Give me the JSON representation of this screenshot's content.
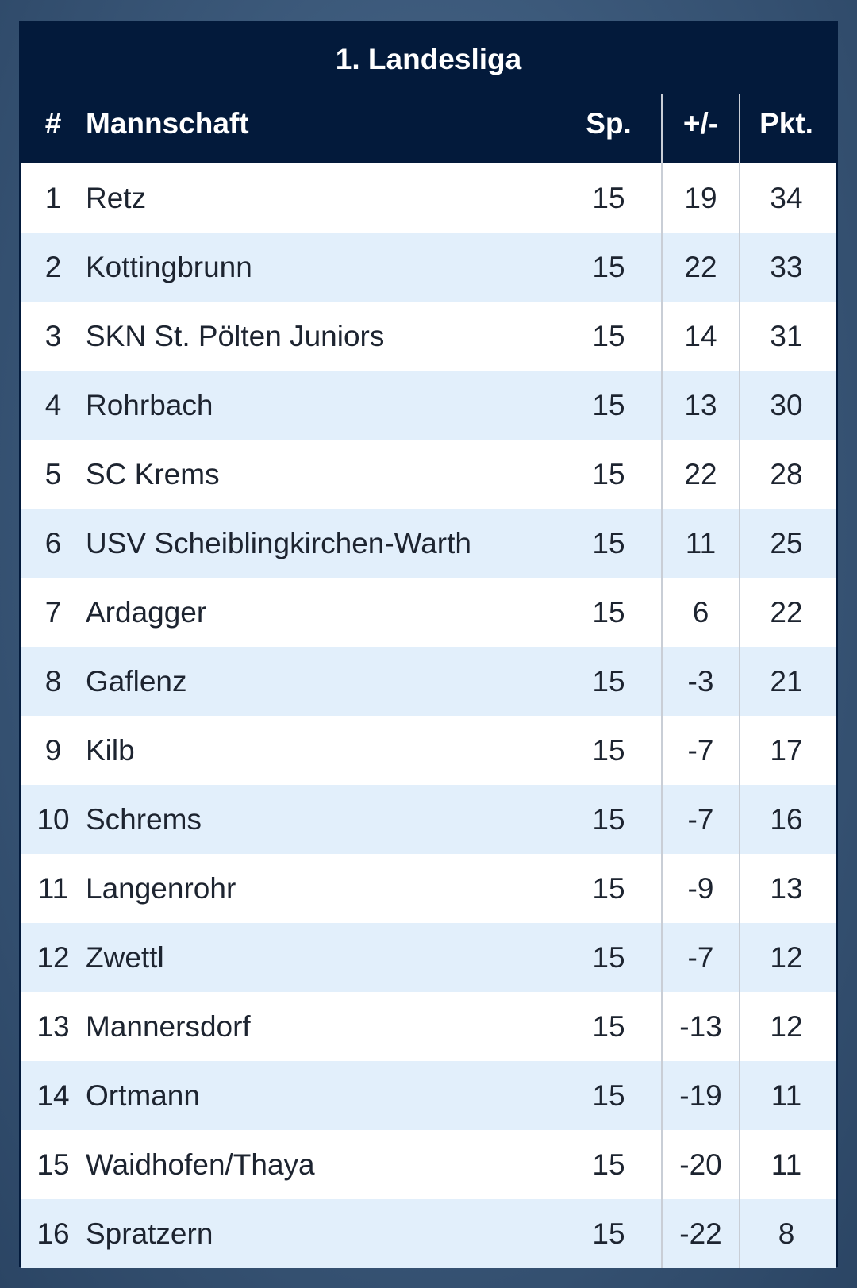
{
  "title": "1. Landesliga",
  "headers": {
    "pos": "#",
    "team": "Mannschaft",
    "played": "Sp.",
    "diff": "+/-",
    "points": "Pkt."
  },
  "rows": [
    {
      "pos": "1",
      "team": "Retz",
      "played": "15",
      "diff": "19",
      "points": "34"
    },
    {
      "pos": "2",
      "team": "Kottingbrunn",
      "played": "15",
      "diff": "22",
      "points": "33"
    },
    {
      "pos": "3",
      "team": "SKN St. Pölten Juniors",
      "played": "15",
      "diff": "14",
      "points": "31"
    },
    {
      "pos": "4",
      "team": "Rohrbach",
      "played": "15",
      "diff": "13",
      "points": "30"
    },
    {
      "pos": "5",
      "team": "SC Krems",
      "played": "15",
      "diff": "22",
      "points": "28"
    },
    {
      "pos": "6",
      "team": "USV Scheiblingkirchen-Warth",
      "played": "15",
      "diff": "11",
      "points": "25"
    },
    {
      "pos": "7",
      "team": "Ardagger",
      "played": "15",
      "diff": "6",
      "points": "22"
    },
    {
      "pos": "8",
      "team": "Gaflenz",
      "played": "15",
      "diff": "-3",
      "points": "21"
    },
    {
      "pos": "9",
      "team": "Kilb",
      "played": "15",
      "diff": "-7",
      "points": "17"
    },
    {
      "pos": "10",
      "team": "Schrems",
      "played": "15",
      "diff": "-7",
      "points": "16"
    },
    {
      "pos": "11",
      "team": "Langenrohr",
      "played": "15",
      "diff": "-9",
      "points": "13"
    },
    {
      "pos": "12",
      "team": "Zwettl",
      "played": "15",
      "diff": "-7",
      "points": "12"
    },
    {
      "pos": "13",
      "team": "Mannersdorf",
      "played": "15",
      "diff": "-13",
      "points": "12"
    },
    {
      "pos": "14",
      "team": "Ortmann",
      "played": "15",
      "diff": "-19",
      "points": "11"
    },
    {
      "pos": "15",
      "team": "Waidhofen/Thaya",
      "played": "15",
      "diff": "-20",
      "points": "11"
    },
    {
      "pos": "16",
      "team": "Spratzern",
      "played": "15",
      "diff": "-22",
      "points": "8"
    }
  ]
}
